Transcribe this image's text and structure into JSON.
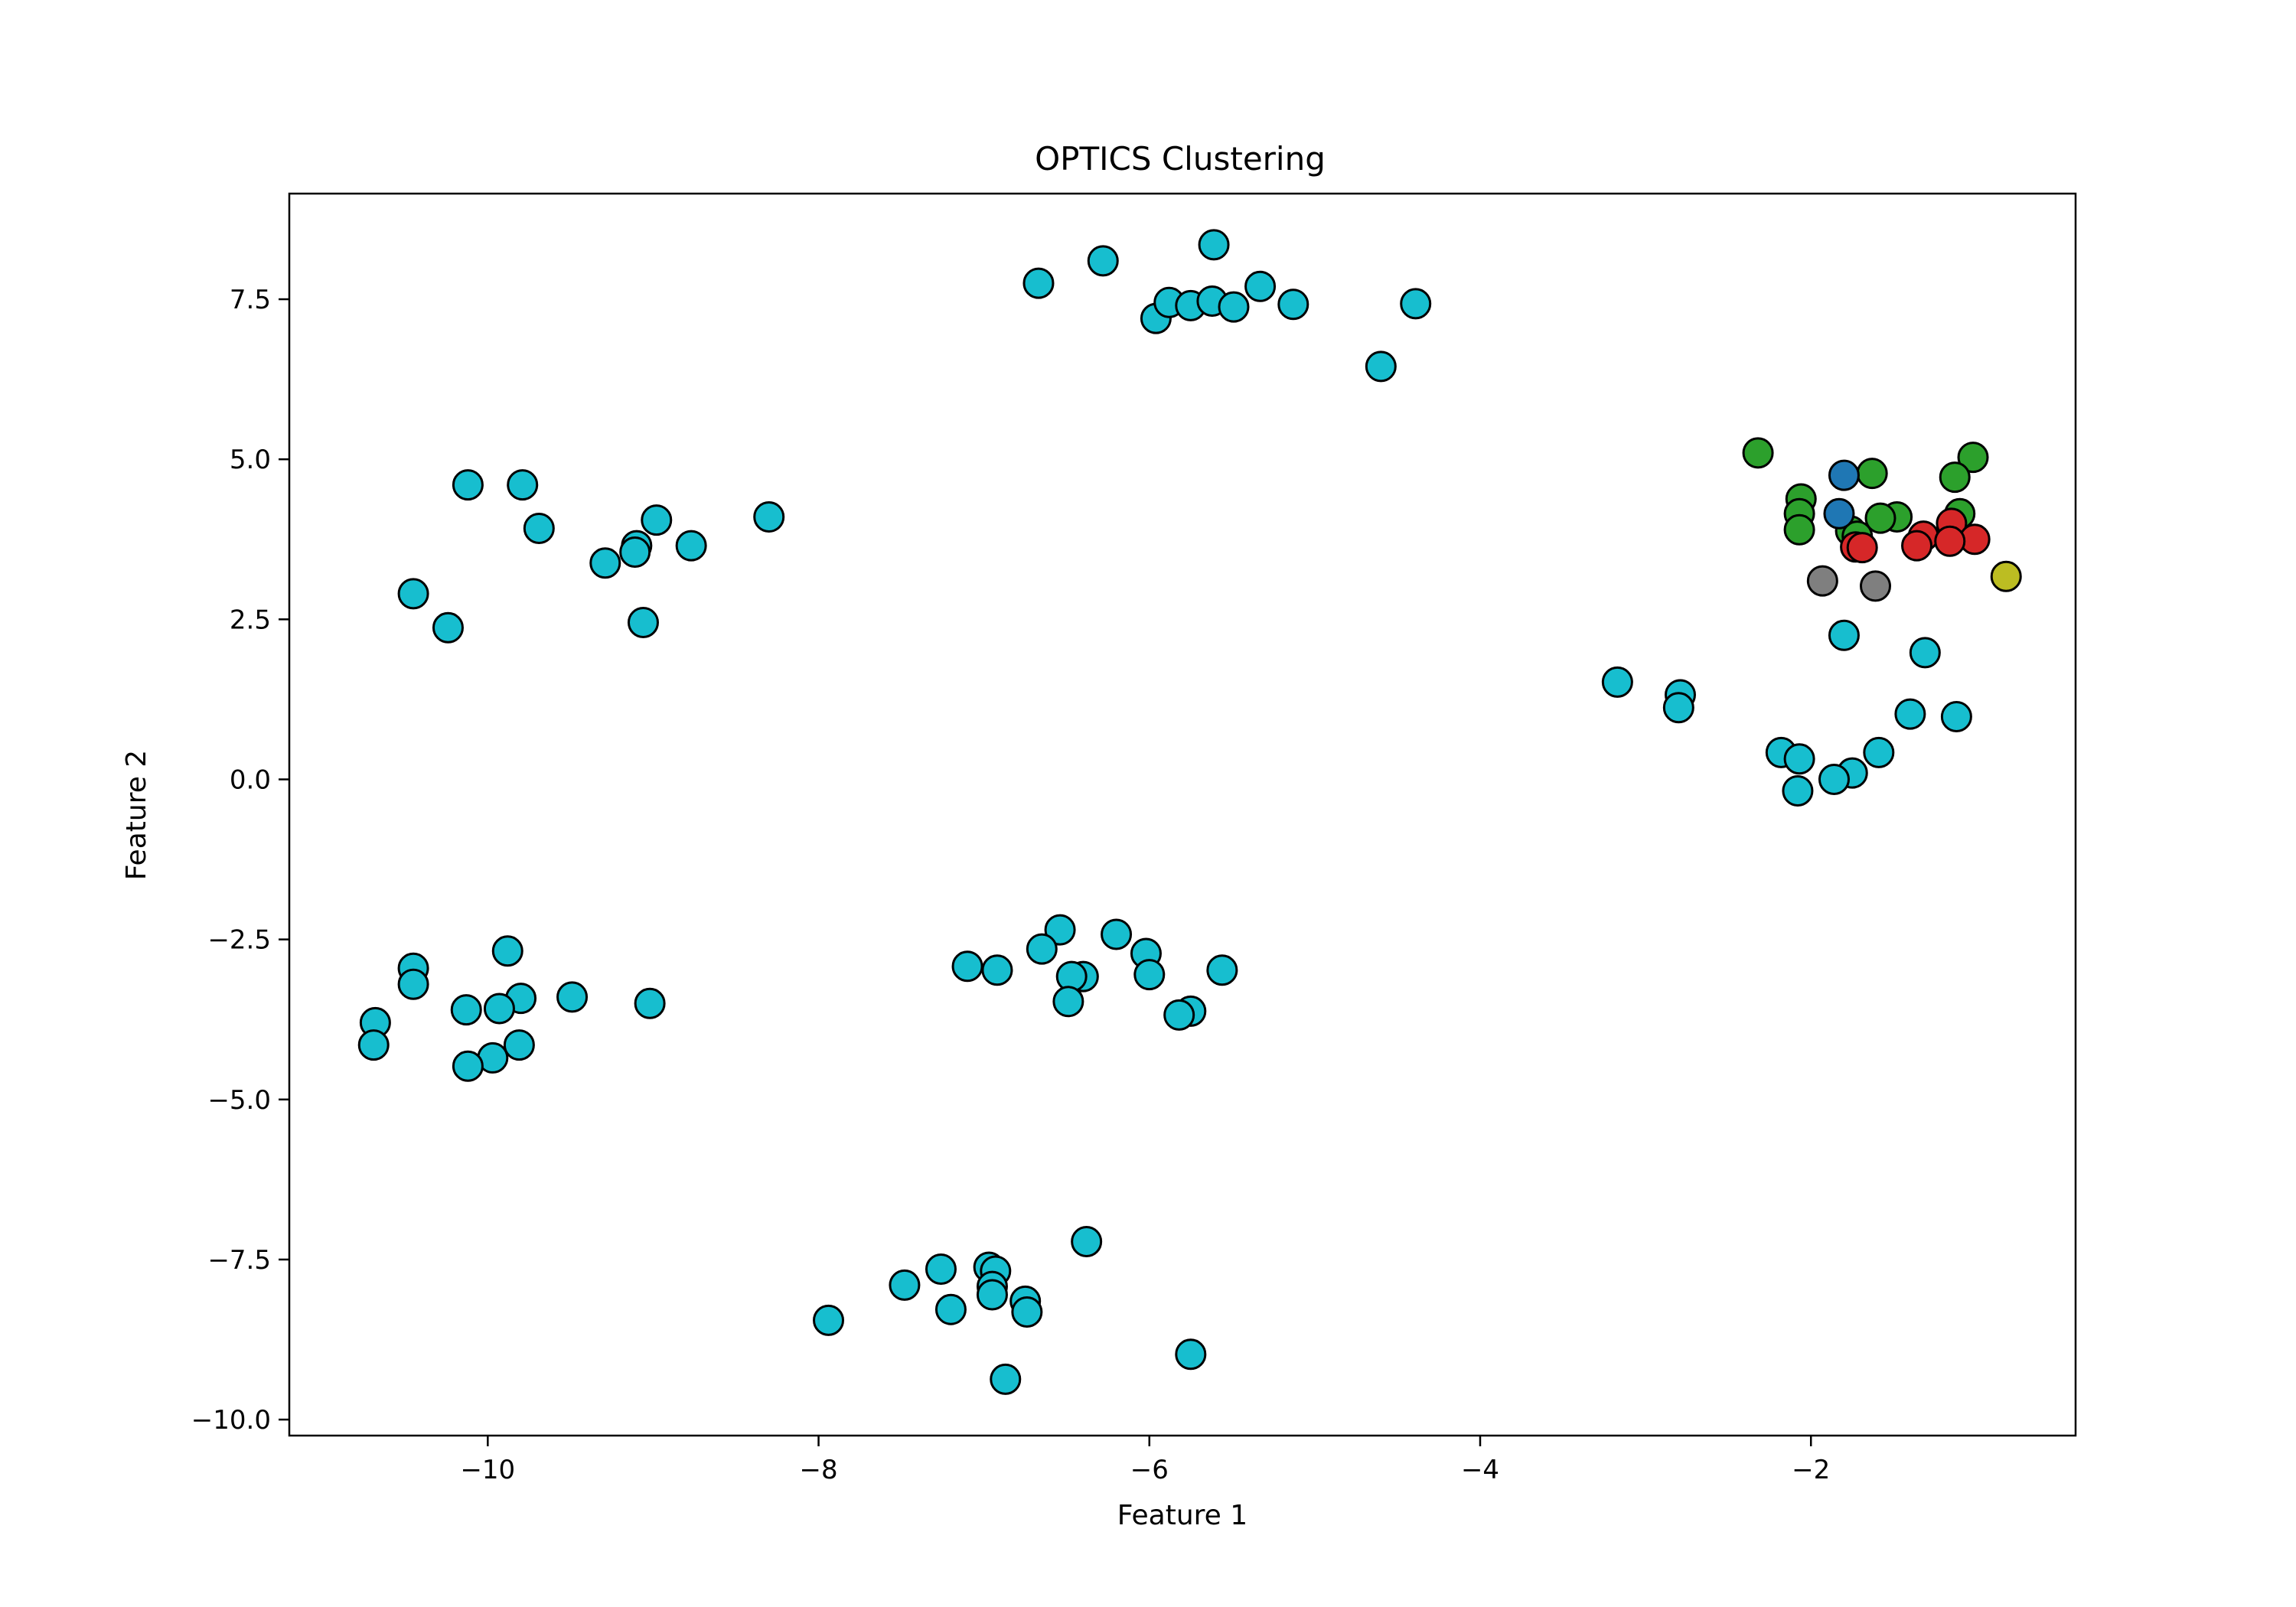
{
  "chart_data": {
    "type": "scatter",
    "title": "OPTICS Clustering",
    "xlabel": "Feature 1",
    "ylabel": "Feature 2",
    "xlim": [
      -11.2,
      -0.4
    ],
    "ylim": [
      -10.25,
      9.15
    ],
    "xticks": [
      -10,
      -8,
      -6,
      -4,
      -2
    ],
    "xtick_labels": [
      "−10",
      "−8",
      "−6",
      "−4",
      "−2"
    ],
    "yticks": [
      7.5,
      5.0,
      2.5,
      0.0,
      -2.5,
      -5.0,
      -7.5,
      -10.0
    ],
    "ytick_labels": [
      "7.5",
      "5.0",
      "2.5",
      "0.0",
      "−2.5",
      "−5.0",
      "−7.5",
      "−10.0"
    ],
    "grid": false,
    "marker": {
      "edge_color": "#000000",
      "shape": "circle"
    },
    "series": [
      {
        "color": "#17becf",
        "points": [
          [
            -6.67,
            7.75
          ],
          [
            -6.28,
            8.1
          ],
          [
            -5.61,
            8.35
          ],
          [
            -5.96,
            7.2
          ],
          [
            -5.88,
            7.45
          ],
          [
            -5.75,
            7.4
          ],
          [
            -5.62,
            7.47
          ],
          [
            -5.49,
            7.38
          ],
          [
            -5.33,
            7.7
          ],
          [
            -5.13,
            7.42
          ],
          [
            -4.6,
            6.45
          ],
          [
            -4.39,
            7.43
          ],
          [
            -10.12,
            4.6
          ],
          [
            -9.79,
            4.6
          ],
          [
            -9.69,
            3.92
          ],
          [
            -8.98,
            4.05
          ],
          [
            -9.1,
            3.65
          ],
          [
            -9.11,
            3.55
          ],
          [
            -9.29,
            3.38
          ],
          [
            -8.77,
            3.65
          ],
          [
            -8.3,
            4.1
          ],
          [
            -10.45,
            2.9
          ],
          [
            -10.24,
            2.37
          ],
          [
            -9.06,
            2.45
          ],
          [
            -3.17,
            1.52
          ],
          [
            -2.79,
            1.32
          ],
          [
            -2.8,
            1.12
          ],
          [
            -1.8,
            2.25
          ],
          [
            -1.31,
            1.98
          ],
          [
            -1.4,
            1.02
          ],
          [
            -1.12,
            0.98
          ],
          [
            -2.18,
            0.42
          ],
          [
            -2.07,
            0.32
          ],
          [
            -1.59,
            0.42
          ],
          [
            -1.75,
            0.1
          ],
          [
            -1.86,
            0.0
          ],
          [
            -2.08,
            -0.18
          ],
          [
            -10.45,
            -2.95
          ],
          [
            -10.45,
            -3.2
          ],
          [
            -9.88,
            -2.68
          ],
          [
            -9.8,
            -3.42
          ],
          [
            -9.49,
            -3.4
          ],
          [
            -10.13,
            -3.6
          ],
          [
            -9.93,
            -3.58
          ],
          [
            -9.02,
            -3.5
          ],
          [
            -10.68,
            -3.8
          ],
          [
            -10.69,
            -4.15
          ],
          [
            -9.81,
            -4.15
          ],
          [
            -9.97,
            -4.35
          ],
          [
            -10.12,
            -4.48
          ],
          [
            -6.54,
            -2.35
          ],
          [
            -6.2,
            -2.42
          ],
          [
            -6.65,
            -2.65
          ],
          [
            -6.02,
            -2.72
          ],
          [
            -7.1,
            -2.92
          ],
          [
            -6.92,
            -2.98
          ],
          [
            -5.56,
            -2.98
          ],
          [
            -6.4,
            -3.08
          ],
          [
            -6.47,
            -3.08
          ],
          [
            -6.0,
            -3.05
          ],
          [
            -6.49,
            -3.47
          ],
          [
            -5.75,
            -3.62
          ],
          [
            -5.82,
            -3.68
          ],
          [
            -6.38,
            -7.22
          ],
          [
            -6.97,
            -7.62
          ],
          [
            -7.26,
            -7.65
          ],
          [
            -6.93,
            -7.68
          ],
          [
            -7.48,
            -7.9
          ],
          [
            -6.95,
            -7.92
          ],
          [
            -6.75,
            -8.15
          ],
          [
            -6.95,
            -8.05
          ],
          [
            -7.2,
            -8.28
          ],
          [
            -6.74,
            -8.32
          ],
          [
            -7.94,
            -8.45
          ],
          [
            -5.75,
            -8.98
          ],
          [
            -6.87,
            -9.37
          ]
        ]
      },
      {
        "color": "#2ca02c",
        "points": [
          [
            -2.32,
            5.1
          ],
          [
            -1.63,
            4.78
          ],
          [
            -1.02,
            5.03
          ],
          [
            -1.13,
            4.72
          ],
          [
            -2.06,
            4.38
          ],
          [
            -2.07,
            4.15
          ],
          [
            -1.48,
            4.1
          ],
          [
            -1.58,
            4.08
          ],
          [
            -1.1,
            4.15
          ],
          [
            -2.07,
            3.9
          ],
          [
            -1.76,
            3.88
          ],
          [
            -1.72,
            3.8
          ]
        ]
      },
      {
        "color": "#1f77b4",
        "points": [
          [
            -1.8,
            4.75
          ],
          [
            -1.83,
            4.15
          ]
        ]
      },
      {
        "color": "#d62728",
        "points": [
          [
            -1.15,
            4.0
          ],
          [
            -1.32,
            3.8
          ],
          [
            -1.01,
            3.75
          ],
          [
            -1.16,
            3.72
          ],
          [
            -1.36,
            3.65
          ],
          [
            -1.73,
            3.63
          ],
          [
            -1.69,
            3.62
          ]
        ]
      },
      {
        "color": "#7f7f7f",
        "points": [
          [
            -1.93,
            3.1
          ],
          [
            -1.61,
            3.02
          ]
        ]
      },
      {
        "color": "#bcbd22",
        "points": [
          [
            -0.82,
            3.17
          ]
        ]
      }
    ]
  }
}
